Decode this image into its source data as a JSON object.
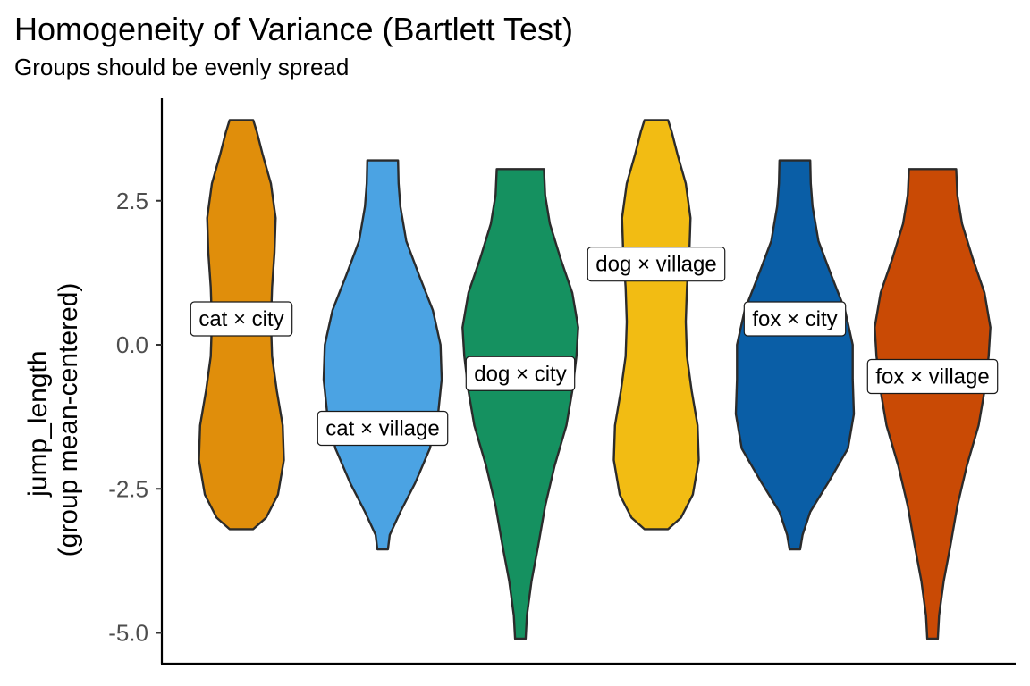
{
  "title": "Homogeneity of Variance (Bartlett Test)",
  "subtitle": "Groups should be evenly spread",
  "chart_data": {
    "type": "violin",
    "ylabel_line1": "jump_length",
    "ylabel_line2": "(group mean-centered)",
    "xlabel": "",
    "ylim": [
      -5.5,
      4.2
    ],
    "yticks": [
      {
        "value": 2.5,
        "label": "2.5"
      },
      {
        "value": 0.0,
        "label": "0.0"
      },
      {
        "value": -2.5,
        "label": "-2.5"
      },
      {
        "value": -5.0,
        "label": "-5.0"
      }
    ],
    "grid": false,
    "legend": "none",
    "groups": [
      {
        "label": "cat × city",
        "color": "#E08E0B",
        "min": -3.2,
        "max": 3.9,
        "label_y": 0.45,
        "profile": [
          [
            -3.2,
            0.2
          ],
          [
            -3.0,
            0.42
          ],
          [
            -2.6,
            0.62
          ],
          [
            -2.0,
            0.72
          ],
          [
            -1.4,
            0.7
          ],
          [
            -0.8,
            0.6
          ],
          [
            -0.2,
            0.52
          ],
          [
            0.4,
            0.5
          ],
          [
            1.0,
            0.52
          ],
          [
            1.6,
            0.56
          ],
          [
            2.2,
            0.58
          ],
          [
            2.8,
            0.5
          ],
          [
            3.3,
            0.36
          ],
          [
            3.7,
            0.26
          ],
          [
            3.9,
            0.2
          ]
        ]
      },
      {
        "label": "cat × village",
        "color": "#4BA3E3",
        "min": -3.55,
        "max": 3.2,
        "label_y": -1.45,
        "profile": [
          [
            -3.55,
            0.09
          ],
          [
            -3.3,
            0.12
          ],
          [
            -2.9,
            0.3
          ],
          [
            -2.4,
            0.55
          ],
          [
            -1.8,
            0.8
          ],
          [
            -1.2,
            0.94
          ],
          [
            -0.6,
            1.0
          ],
          [
            0.0,
            0.98
          ],
          [
            0.6,
            0.85
          ],
          [
            1.2,
            0.62
          ],
          [
            1.8,
            0.4
          ],
          [
            2.4,
            0.3
          ],
          [
            2.8,
            0.27
          ],
          [
            3.2,
            0.26
          ]
        ]
      },
      {
        "label": "dog × city",
        "color": "#159160",
        "min": -5.1,
        "max": 3.05,
        "label_y": -0.5,
        "profile": [
          [
            -5.1,
            0.09
          ],
          [
            -4.7,
            0.11
          ],
          [
            -4.1,
            0.19
          ],
          [
            -3.5,
            0.3
          ],
          [
            -2.8,
            0.42
          ],
          [
            -2.1,
            0.58
          ],
          [
            -1.4,
            0.78
          ],
          [
            -0.8,
            0.88
          ],
          [
            -0.2,
            0.95
          ],
          [
            0.3,
            0.98
          ],
          [
            0.9,
            0.88
          ],
          [
            1.5,
            0.68
          ],
          [
            2.1,
            0.5
          ],
          [
            2.6,
            0.42
          ],
          [
            3.05,
            0.4
          ]
        ]
      },
      {
        "label": "dog × village",
        "color": "#F2BC13",
        "min": -3.2,
        "max": 3.9,
        "label_y": 1.4,
        "profile": [
          [
            -3.2,
            0.2
          ],
          [
            -3.0,
            0.42
          ],
          [
            -2.6,
            0.62
          ],
          [
            -2.0,
            0.72
          ],
          [
            -1.4,
            0.7
          ],
          [
            -0.8,
            0.6
          ],
          [
            -0.2,
            0.52
          ],
          [
            0.4,
            0.5
          ],
          [
            1.0,
            0.52
          ],
          [
            1.6,
            0.56
          ],
          [
            2.2,
            0.58
          ],
          [
            2.8,
            0.5
          ],
          [
            3.3,
            0.36
          ],
          [
            3.7,
            0.26
          ],
          [
            3.9,
            0.2
          ]
        ]
      },
      {
        "label": "fox × city",
        "color": "#0A5EA6",
        "min": -3.55,
        "max": 3.2,
        "label_y": 0.45,
        "profile": [
          [
            -3.55,
            0.09
          ],
          [
            -3.3,
            0.13
          ],
          [
            -2.9,
            0.26
          ],
          [
            -2.4,
            0.56
          ],
          [
            -1.8,
            0.9
          ],
          [
            -1.2,
            1.0
          ],
          [
            -0.6,
            0.98
          ],
          [
            0.0,
            0.98
          ],
          [
            0.6,
            0.85
          ],
          [
            1.2,
            0.62
          ],
          [
            1.8,
            0.4
          ],
          [
            2.4,
            0.3
          ],
          [
            2.8,
            0.27
          ],
          [
            3.2,
            0.26
          ]
        ]
      },
      {
        "label": "fox × village",
        "color": "#C94A05",
        "min": -5.1,
        "max": 3.05,
        "label_y": -0.55,
        "profile": [
          [
            -5.1,
            0.09
          ],
          [
            -4.7,
            0.11
          ],
          [
            -4.1,
            0.19
          ],
          [
            -3.5,
            0.3
          ],
          [
            -2.8,
            0.42
          ],
          [
            -2.1,
            0.58
          ],
          [
            -1.4,
            0.78
          ],
          [
            -0.8,
            0.88
          ],
          [
            -0.2,
            0.95
          ],
          [
            0.3,
            0.98
          ],
          [
            0.9,
            0.88
          ],
          [
            1.5,
            0.68
          ],
          [
            2.1,
            0.5
          ],
          [
            2.6,
            0.42
          ],
          [
            3.05,
            0.4
          ]
        ]
      }
    ]
  }
}
